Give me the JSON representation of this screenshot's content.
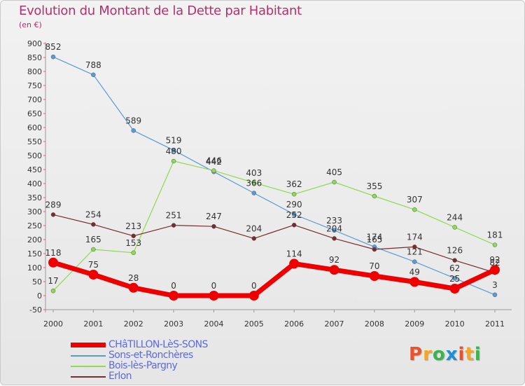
{
  "title": "Evolution du Montant de la Dette par Habitant",
  "subtitle": "(en €)",
  "logo": {
    "text": "Proxiti",
    "colors": [
      "#e8532b",
      "#f5a623",
      "#3bb54a",
      "#1d8fd6",
      "#e8532b",
      "#f5a623",
      "#3bb54a"
    ]
  },
  "chart_data": {
    "type": "line",
    "categories": [
      "2000",
      "2001",
      "2002",
      "2003",
      "2004",
      "2005",
      "2006",
      "2007",
      "2008",
      "2009",
      "2010",
      "2011"
    ],
    "ylim": [
      -50,
      900
    ],
    "yticks": [
      "-50",
      "0",
      "50",
      "100",
      "150",
      "200",
      "250",
      "300",
      "350",
      "400",
      "450",
      "500",
      "550",
      "600",
      "650",
      "700",
      "750",
      "800",
      "850",
      "900"
    ],
    "grid": false,
    "legend_position": "bottom-left",
    "series": [
      {
        "name": "CHâTILLON-LèS-SONS",
        "color": "#ee0000",
        "values": [
          118,
          75,
          28,
          0,
          0,
          0,
          114,
          92,
          70,
          49,
          25,
          92
        ],
        "labels": [
          "118",
          "75",
          "28",
          "0",
          "0",
          "0",
          "114",
          "92",
          "70",
          "49",
          "25",
          "92"
        ]
      },
      {
        "name": "Sons-et-Ronchères",
        "color": "#5b9bd5",
        "values": [
          852,
          788,
          589,
          519,
          442,
          366,
          290,
          233,
          174,
          121,
          62,
          3
        ],
        "labels": [
          "852",
          "788",
          "589",
          "519",
          "442",
          "366",
          "290",
          "233",
          "174",
          "121",
          "62",
          "3"
        ]
      },
      {
        "name": "Bois-lès-Pargny",
        "color": "#8ddb50",
        "values": [
          17,
          165,
          153,
          480,
          446,
          403,
          362,
          405,
          355,
          307,
          244,
          181
        ],
        "labels": [
          "17",
          "165",
          "153",
          "480",
          "446",
          "403",
          "362",
          "405",
          "355",
          "307",
          "244",
          "181"
        ]
      },
      {
        "name": "Erlon",
        "color": "#7a2b2b",
        "values": [
          289,
          254,
          213,
          251,
          247,
          204,
          252,
          204,
          165,
          174,
          126,
          82
        ],
        "labels": [
          "289",
          "254",
          "213",
          "251",
          "247",
          "204",
          "252",
          "204",
          "165",
          "174",
          "126",
          "82"
        ]
      }
    ]
  }
}
